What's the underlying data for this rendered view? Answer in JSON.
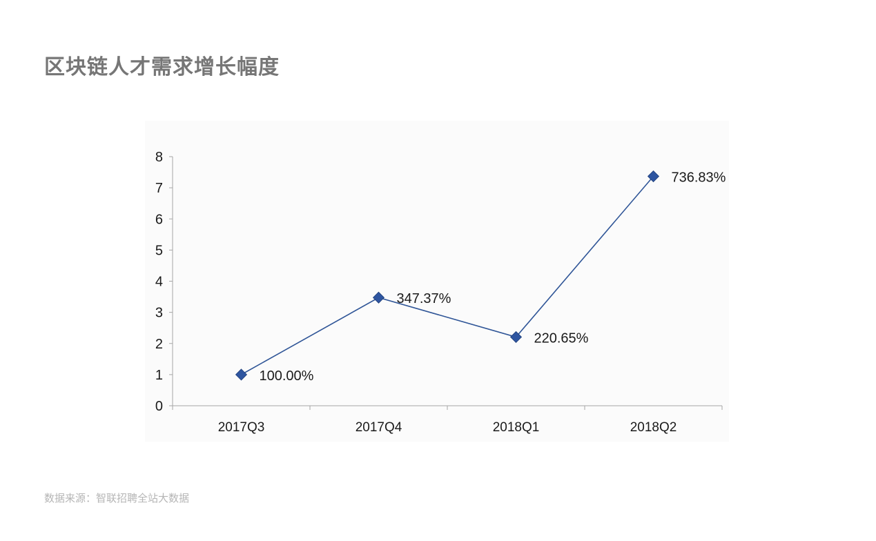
{
  "title": "区块链人才需求增长幅度",
  "source": "数据来源：智联招聘全站大数据",
  "chart_data": {
    "type": "line",
    "categories": [
      "2017Q3",
      "2017Q4",
      "2018Q1",
      "2018Q2"
    ],
    "values": [
      1.0,
      3.4737,
      2.2065,
      7.3683
    ],
    "data_labels": [
      "100.00%",
      "347.37%",
      "220.65%",
      "736.83%"
    ],
    "title": "区块链人才需求增长幅度",
    "xlabel": "",
    "ylabel": "",
    "ylim": [
      0,
      8
    ],
    "yticks": [
      "0",
      "1",
      "2",
      "3",
      "4",
      "5",
      "6",
      "7",
      "8"
    ],
    "grid": false,
    "legend": "none",
    "marker": "diamond",
    "colors": {
      "line": "#2f5597",
      "marker": "#2e55a0",
      "axis": "#a6a6a6",
      "plot_background": "#fbfbfb",
      "text": "#1a1a1a"
    }
  }
}
